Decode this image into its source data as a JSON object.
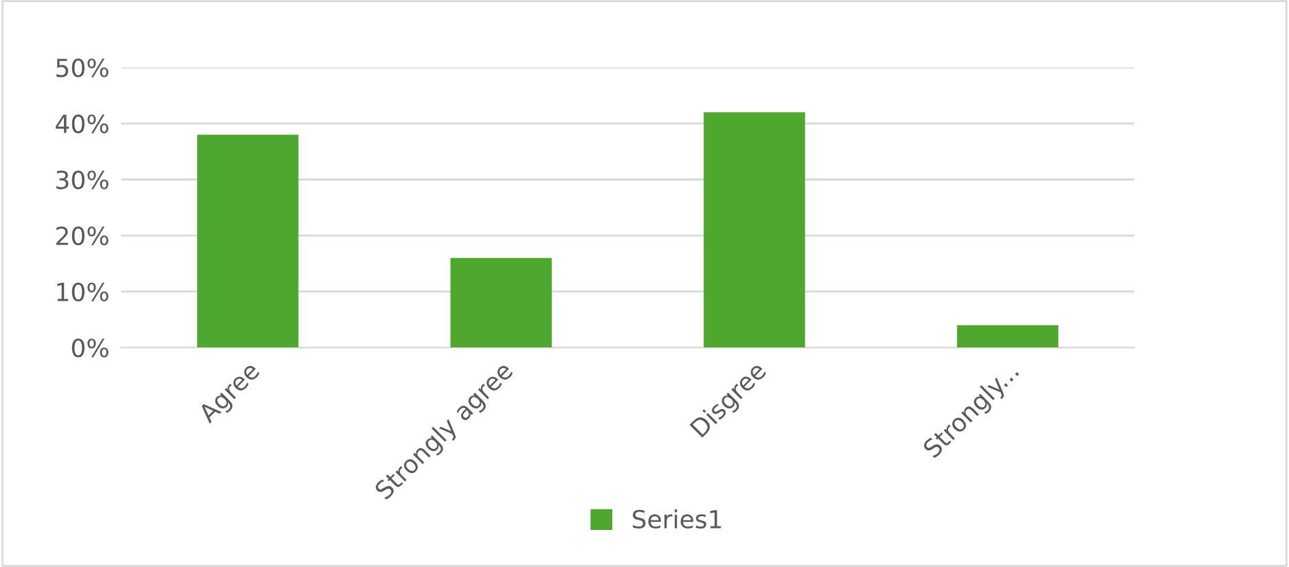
{
  "chart_data": {
    "type": "bar",
    "categories": [
      "Agree",
      "Strongly agree",
      "Disgree",
      "Strongly..."
    ],
    "series": [
      {
        "name": "Series1",
        "color": "#4ea72e",
        "values": [
          38,
          16,
          42,
          4
        ]
      }
    ],
    "ylim": [
      0,
      50
    ],
    "yticks": [
      {
        "value": 0,
        "label": "0%"
      },
      {
        "value": 10,
        "label": "10%"
      },
      {
        "value": 20,
        "label": "20%"
      },
      {
        "value": 30,
        "label": "30%"
      },
      {
        "value": 40,
        "label": "40%"
      },
      {
        "value": 50,
        "label": "50%"
      }
    ],
    "grid": "y",
    "legend": "bottom"
  }
}
